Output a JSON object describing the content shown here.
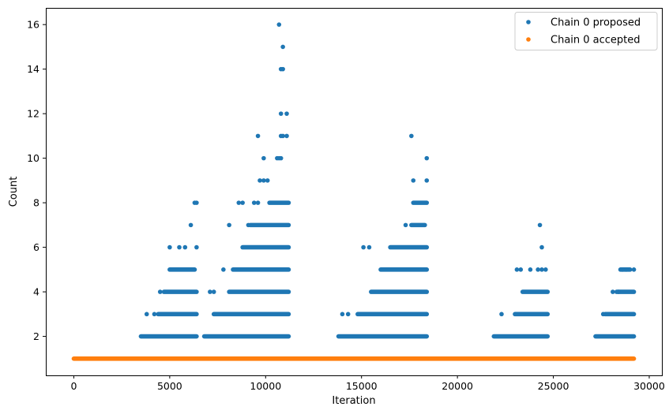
{
  "chart_data": {
    "type": "scatter",
    "title": "",
    "xlabel": "Iteration",
    "ylabel": "Count",
    "xlim": [
      -1460,
      30660
    ],
    "ylim": [
      0.25,
      16.75
    ],
    "xticks": [
      0,
      5000,
      10000,
      15000,
      20000,
      25000,
      30000
    ],
    "yticks": [
      2,
      4,
      6,
      8,
      10,
      12,
      14,
      16
    ],
    "grid": false,
    "legend_position": "top-right",
    "x_range": [
      0,
      29200
    ],
    "series": [
      {
        "name": "Chain 0 proposed",
        "color": "#1f77b4",
        "bands": [
          {
            "x": [
              3500,
              6400
            ],
            "y": 2
          },
          {
            "x": [
              6800,
              11200
            ],
            "y": 2
          },
          {
            "x": [
              13800,
              18400
            ],
            "y": 2
          },
          {
            "x": [
              21900,
              24700
            ],
            "y": 2
          },
          {
            "x": [
              27200,
              29200
            ],
            "y": 2
          },
          {
            "x": [
              4400,
              6400
            ],
            "y": 3
          },
          {
            "x": [
              7300,
              11200
            ],
            "y": 3
          },
          {
            "x": [
              14800,
              18400
            ],
            "y": 3
          },
          {
            "x": [
              23000,
              24700
            ],
            "y": 3
          },
          {
            "x": [
              27700,
              29200
            ],
            "y": 3
          },
          {
            "x": [
              4700,
              6400
            ],
            "y": 4
          },
          {
            "x": [
              8100,
              11200
            ],
            "y": 4
          },
          {
            "x": [
              15500,
              18400
            ],
            "y": 4
          },
          {
            "x": [
              23400,
              24700
            ],
            "y": 4
          },
          {
            "x": [
              28300,
              29200
            ],
            "y": 4
          },
          {
            "x": [
              5000,
              6300
            ],
            "y": 5
          },
          {
            "x": [
              8300,
              11200
            ],
            "y": 5
          },
          {
            "x": [
              16000,
              18400
            ],
            "y": 5
          },
          {
            "x": [
              28500,
              29000
            ],
            "y": 5
          },
          {
            "x": [
              8800,
              11200
            ],
            "y": 6
          },
          {
            "x": [
              16500,
              18400
            ],
            "y": 6
          },
          {
            "x": [
              9200,
              11200
            ],
            "y": 7
          },
          {
            "x": [
              17600,
              18300
            ],
            "y": 7
          },
          {
            "x": [
              10200,
              11200
            ],
            "y": 8
          },
          {
            "x": [
              17700,
              18400
            ],
            "y": 8
          }
        ],
        "points": [
          [
            3800,
            3
          ],
          [
            4200,
            3
          ],
          [
            4500,
            4
          ],
          [
            5000,
            6
          ],
          [
            5500,
            6
          ],
          [
            5800,
            6
          ],
          [
            6400,
            6
          ],
          [
            6100,
            7
          ],
          [
            6300,
            8
          ],
          [
            6400,
            8
          ],
          [
            7100,
            4
          ],
          [
            7300,
            4
          ],
          [
            7800,
            5
          ],
          [
            8100,
            7
          ],
          [
            8600,
            8
          ],
          [
            8800,
            8
          ],
          [
            9100,
            7
          ],
          [
            9400,
            8
          ],
          [
            9600,
            8
          ],
          [
            9700,
            9
          ],
          [
            9900,
            9
          ],
          [
            10100,
            9
          ],
          [
            9600,
            11
          ],
          [
            9900,
            10
          ],
          [
            10600,
            10
          ],
          [
            10700,
            10
          ],
          [
            10800,
            10
          ],
          [
            10800,
            11
          ],
          [
            10900,
            11
          ],
          [
            11100,
            11
          ],
          [
            10800,
            12
          ],
          [
            11100,
            12
          ],
          [
            10800,
            14
          ],
          [
            10900,
            14
          ],
          [
            10900,
            15
          ],
          [
            10700,
            16
          ],
          [
            14000,
            3
          ],
          [
            14300,
            3
          ],
          [
            15100,
            6
          ],
          [
            15400,
            6
          ],
          [
            17300,
            7
          ],
          [
            17700,
            9
          ],
          [
            18400,
            9
          ],
          [
            18400,
            10
          ],
          [
            17600,
            11
          ],
          [
            22300,
            3
          ],
          [
            23100,
            5
          ],
          [
            23300,
            5
          ],
          [
            23800,
            5
          ],
          [
            24200,
            5
          ],
          [
            24400,
            5
          ],
          [
            24600,
            5
          ],
          [
            24400,
            6
          ],
          [
            24300,
            7
          ],
          [
            27600,
            3
          ],
          [
            28100,
            4
          ],
          [
            28400,
            4
          ],
          [
            28600,
            5
          ],
          [
            28800,
            5
          ],
          [
            29200,
            5
          ]
        ]
      },
      {
        "name": "Chain 0 accepted",
        "color": "#ff7f0e",
        "bands": [
          {
            "x": [
              0,
              29200
            ],
            "y": 1
          }
        ],
        "points": []
      }
    ]
  }
}
